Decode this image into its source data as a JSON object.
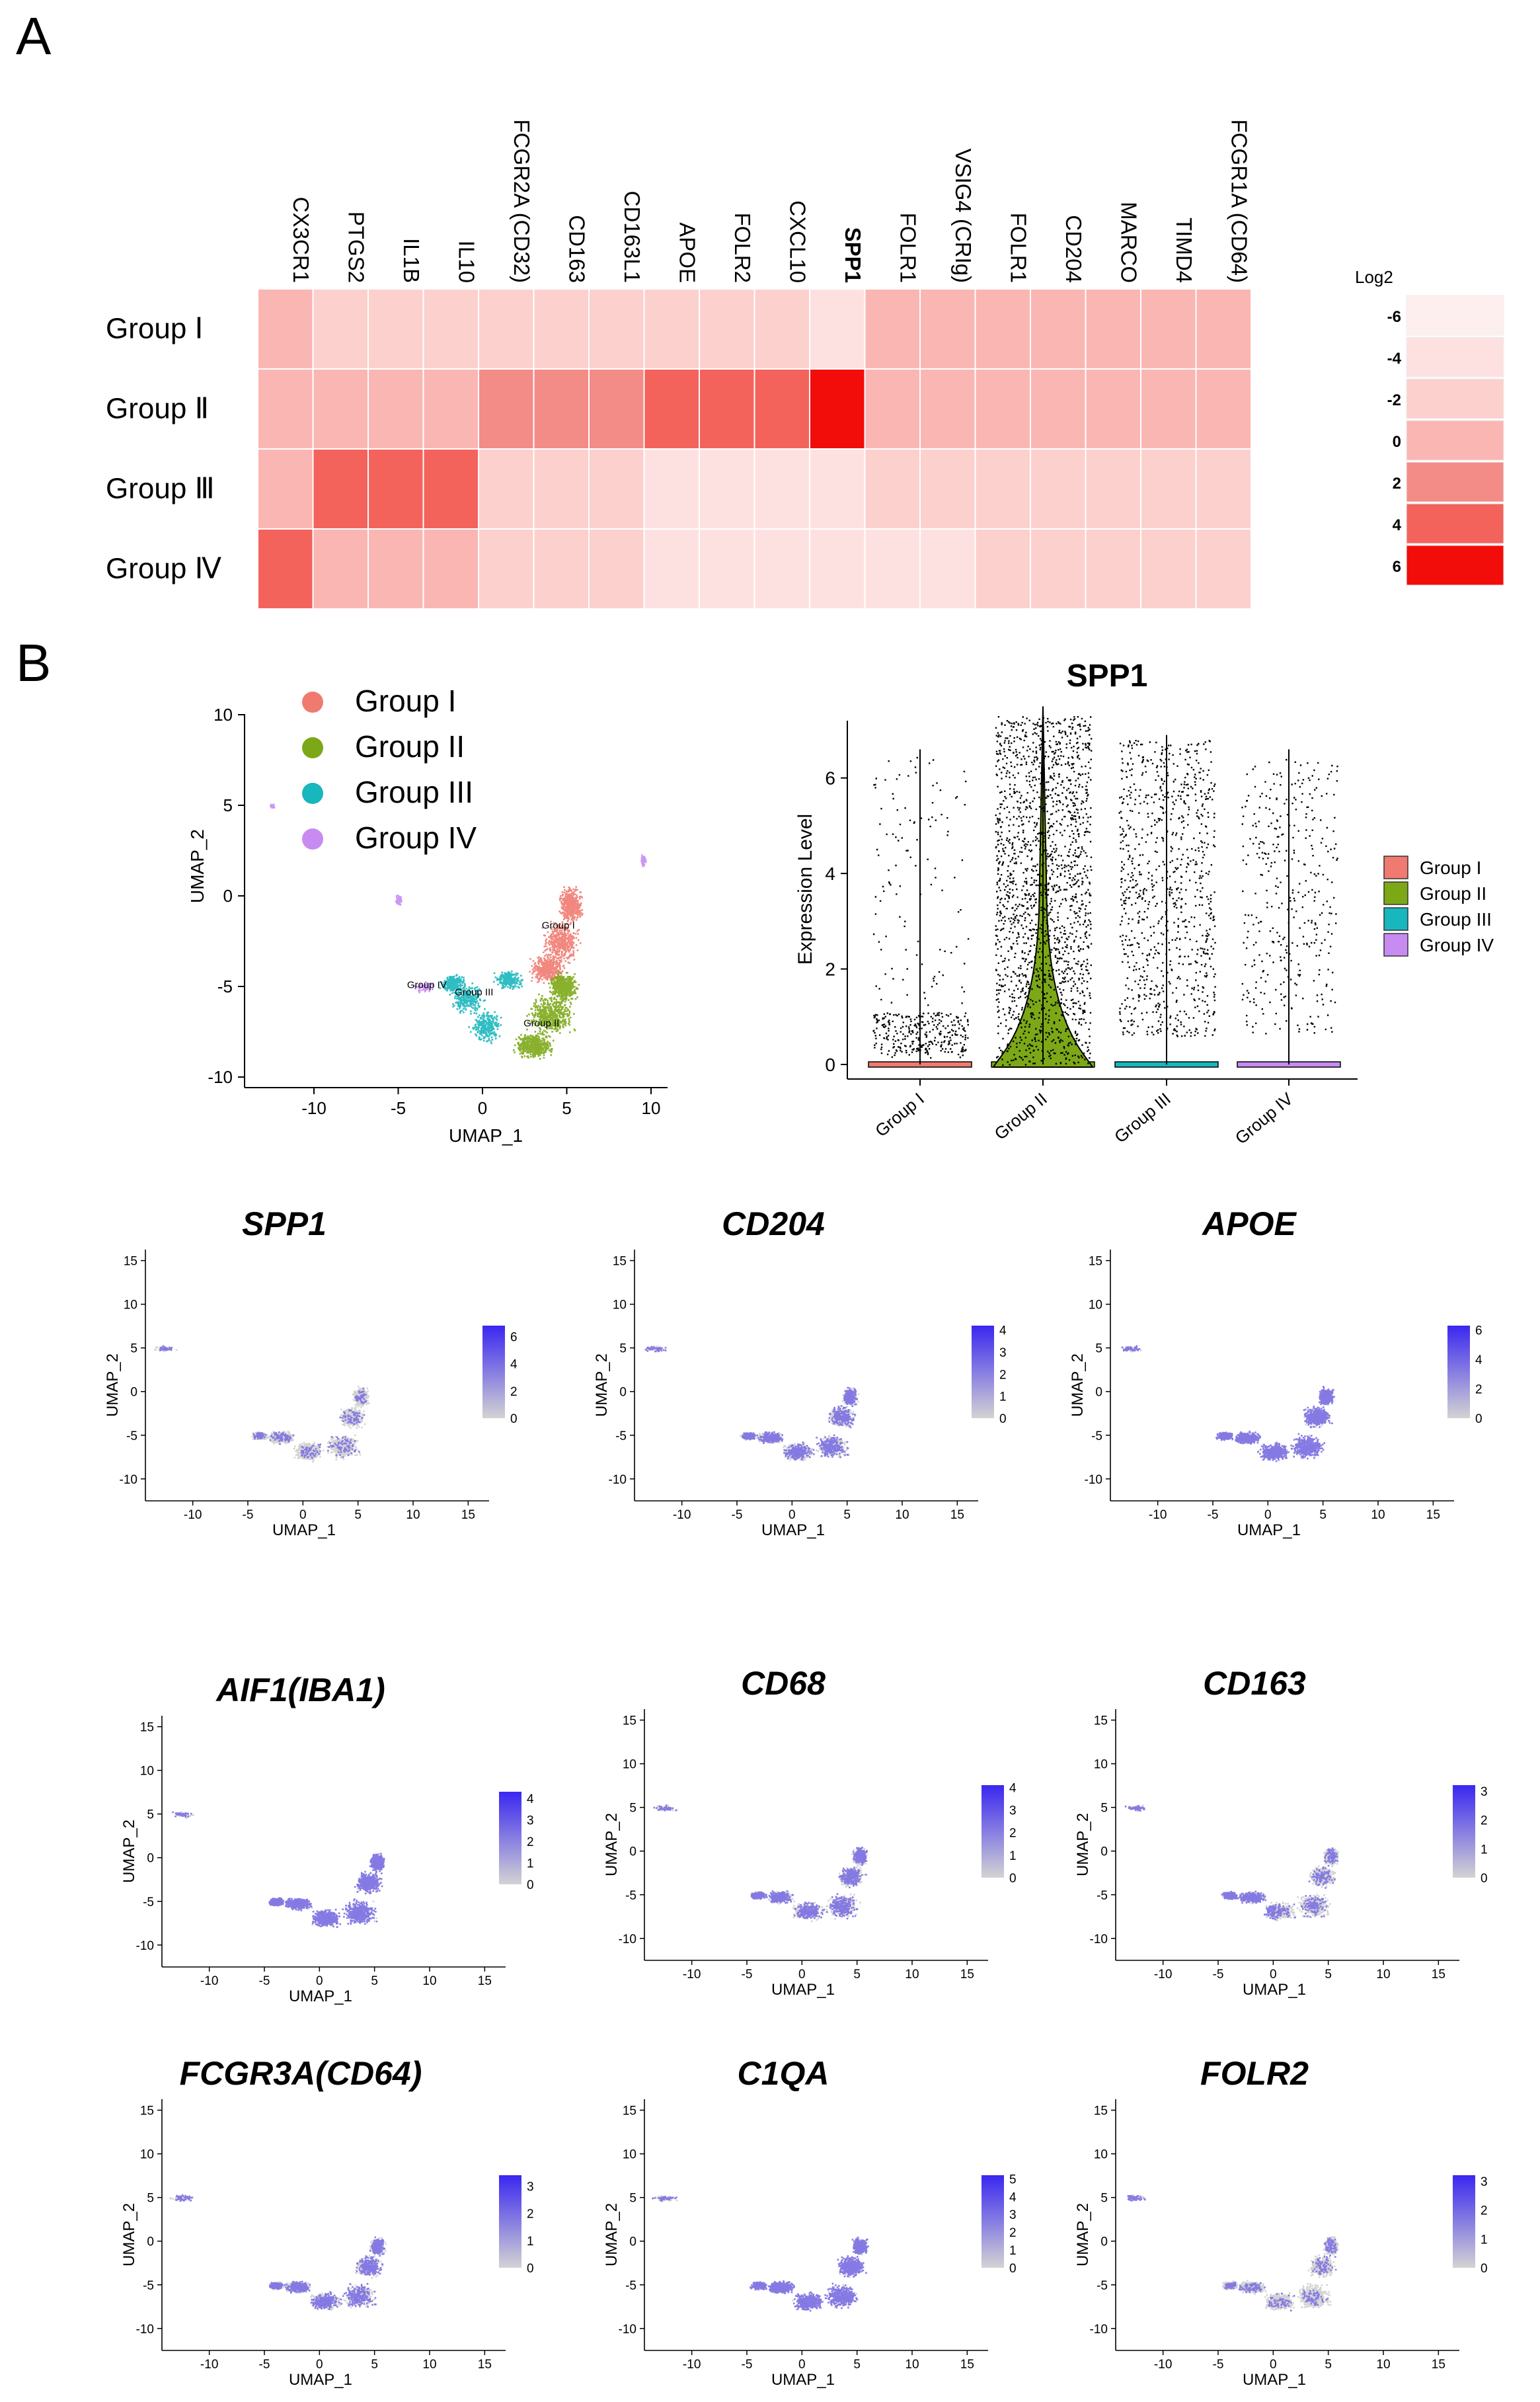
{
  "panels": {
    "A": "A",
    "B": "B"
  },
  "heatmap": {
    "type": "heatmap",
    "genes": [
      "CX3CR1",
      "PTGS2",
      "IL1B",
      "IL10",
      "FCGR2A (CD32)",
      "CD163",
      "CD163L1",
      "APOE",
      "FOLR2",
      "CXCL10",
      "SPP1",
      "FOLR1",
      "VSIG4 (CRIg)",
      "FOLR1",
      "CD204",
      "MARCO",
      "TIMD4",
      "FCGR1A (CD64)"
    ],
    "bold_gene": "SPP1",
    "groups": [
      "Group Ⅰ",
      "Group Ⅱ",
      "Group Ⅲ",
      "Group Ⅳ"
    ],
    "values": [
      [
        -1,
        -3,
        -3,
        -3,
        -2,
        -2,
        -2,
        -2,
        -3,
        -3,
        -5,
        0,
        0,
        0,
        0,
        0,
        0,
        0
      ],
      [
        -1,
        -1,
        -1,
        0,
        1,
        1,
        1,
        3,
        3,
        3,
        6,
        -1,
        -1,
        -1,
        -1,
        -1,
        -1,
        -1
      ],
      [
        0,
        3,
        3,
        3,
        -2,
        -2,
        -2,
        -5,
        -4,
        -4,
        -4,
        -2,
        -2,
        -2,
        -2,
        -2,
        -2,
        -2
      ],
      [
        3,
        -1,
        -1,
        -1,
        -2,
        -3,
        -2,
        -5,
        -4,
        -4,
        -5,
        -4,
        -5,
        -3,
        -3,
        -3,
        -3,
        -3
      ]
    ],
    "legend": {
      "title": "Log2",
      "levels": [
        "-6",
        "-4",
        "-2",
        "0",
        "2",
        "4",
        "6"
      ],
      "colors": [
        "#fdefee",
        "#fde1e0",
        "#fcd0cd",
        "#fab6b3",
        "#f38b87",
        "#f4625c",
        "#f20d0b"
      ]
    }
  },
  "umap_clusters": {
    "type": "scatter",
    "xlabel": "UMAP_1",
    "ylabel": "UMAP_2",
    "xticks": [
      "-10",
      "-5",
      "0",
      "5",
      "10"
    ],
    "yticks": [
      "10",
      "5",
      "0",
      "-5",
      "-10"
    ],
    "legend": [
      {
        "name": "Group I",
        "color": "#f07a70"
      },
      {
        "name": "Group II",
        "color": "#7ca817"
      },
      {
        "name": "Group III",
        "color": "#18b6bd"
      },
      {
        "name": "Group IV",
        "color": "#c78bf2"
      }
    ],
    "cluster_labels": [
      "Group I",
      "Group II",
      "Group III",
      "Group IV"
    ]
  },
  "violin": {
    "type": "scatter",
    "title": "SPP1",
    "ylabel": "Expression Level",
    "yticks": [
      "0",
      "2",
      "4",
      "6"
    ],
    "ylim": [
      0,
      7.2
    ],
    "categories": [
      "Group I",
      "Group II",
      "Group III",
      "Group IV"
    ],
    "max_values": [
      6.6,
      7.5,
      6.9,
      6.6
    ],
    "legend": [
      {
        "name": "Group I",
        "color": "#f07a70"
      },
      {
        "name": "Group II",
        "color": "#7ca817"
      },
      {
        "name": "Group III",
        "color": "#18b6bd"
      },
      {
        "name": "Group IV",
        "color": "#c78bf2"
      }
    ]
  },
  "feature_plots": [
    {
      "title": "SPP1",
      "scale": [
        "6",
        "4",
        "2",
        "0"
      ],
      "max": 6.8,
      "density": "low"
    },
    {
      "title": "CD204",
      "scale": [
        "4",
        "3",
        "2",
        "1",
        "0"
      ],
      "max": 4.2,
      "density": "mid"
    },
    {
      "title": "APOE",
      "scale": [
        "6",
        "4",
        "2",
        "0"
      ],
      "max": 6.3,
      "density": "high"
    },
    {
      "title": "AIF1(IBA1)",
      "scale": [
        "4",
        "3",
        "2",
        "1",
        "0"
      ],
      "max": 4.3,
      "density": "high"
    },
    {
      "title": "CD68",
      "scale": [
        "4",
        "3",
        "2",
        "1",
        "0"
      ],
      "max": 4.1,
      "density": "mid"
    },
    {
      "title": "CD163",
      "scale": [
        "3",
        "2",
        "1",
        "0"
      ],
      "max": 3.2,
      "density": "left"
    },
    {
      "title": "FCGR3A(CD64)",
      "scale": [
        "3",
        "2",
        "1",
        "0"
      ],
      "max": 3.4,
      "density": "mid"
    },
    {
      "title": "C1QA",
      "scale": [
        "5",
        "4",
        "3",
        "2",
        "1",
        "0"
      ],
      "max": 5.2,
      "density": "high"
    },
    {
      "title": "FOLR2",
      "scale": [
        "3",
        "2",
        "1",
        "0"
      ],
      "max": 3.2,
      "density": "low"
    }
  ],
  "feature_axes": {
    "xlabel": "UMAP_1",
    "ylabel": "UMAP_2",
    "xticks": [
      "-10",
      "-5",
      "0",
      "5",
      "10",
      "15"
    ],
    "yticks": [
      "15",
      "10",
      "5",
      "0",
      "-5",
      "-10"
    ]
  },
  "colors": {
    "low": "#d3d3d3",
    "high": "#3a27f0",
    "text": "#000000"
  }
}
